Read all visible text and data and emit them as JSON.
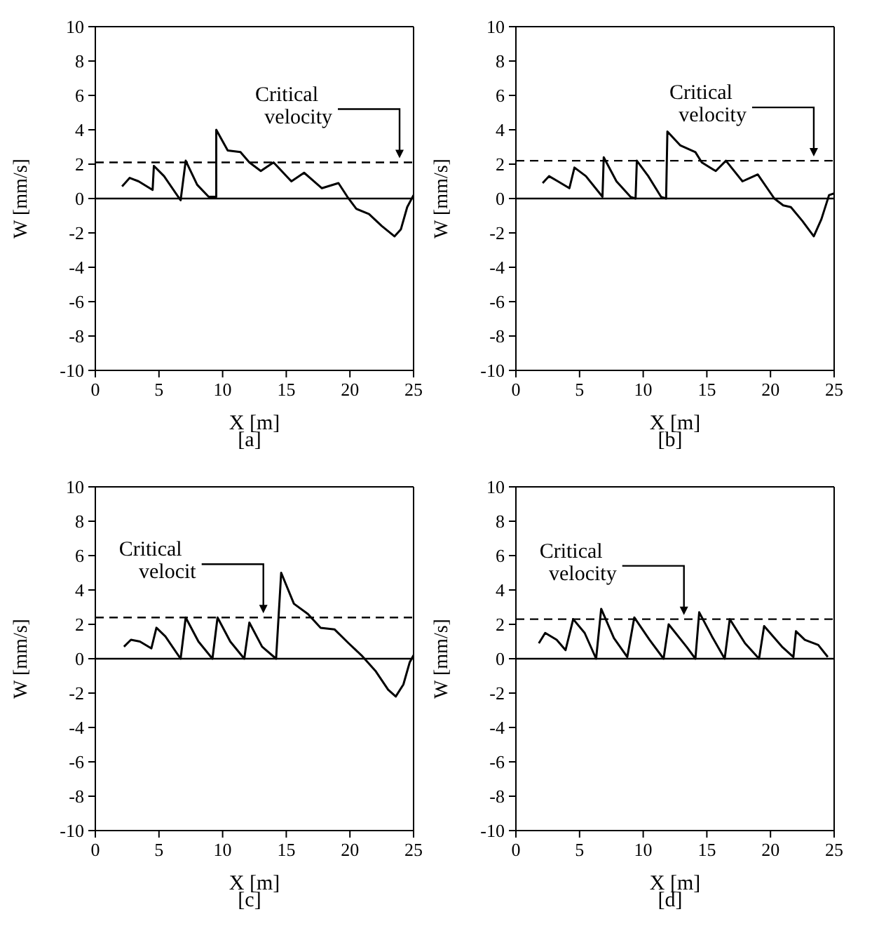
{
  "chart_data": [
    {
      "type": "line",
      "title": "[a]",
      "xlabel": "X     [m]",
      "ylabel": "W     [mm/s]",
      "xlim": [
        0,
        25
      ],
      "xticks": [
        0,
        5,
        10,
        15,
        20,
        25
      ],
      "ylim": [
        -10,
        10
      ],
      "yticks": [
        -10,
        -8,
        -6,
        -4,
        -2,
        0,
        2,
        4,
        6,
        8,
        10
      ],
      "marker": "none",
      "series": [
        {
          "color": "#000000",
          "line_style": "solid",
          "x": [
            2.1,
            2.7,
            3.4,
            4.5,
            4.6,
            5.4,
            6.7,
            7.1,
            8.0,
            8.9,
            9.5,
            9.5,
            10.4,
            11.4,
            12.1,
            13.0,
            14.0,
            15.4,
            16.4,
            17.8,
            19.1,
            19.8,
            20.5,
            21.5,
            22.5,
            23.5,
            24.0,
            24.5,
            25.0
          ],
          "values": [
            0.7,
            1.2,
            1.0,
            0.5,
            1.9,
            1.3,
            -0.1,
            2.2,
            0.8,
            0.1,
            0.1,
            4.0,
            2.8,
            2.7,
            2.1,
            1.6,
            2.1,
            1.0,
            1.5,
            0.6,
            0.9,
            0.1,
            -0.6,
            -0.9,
            -1.6,
            -2.2,
            -1.8,
            -0.5,
            0.2
          ]
        }
      ],
      "ref_lines": [
        {
          "axis": "y",
          "value": 0,
          "line_style": "solid",
          "color": "#000000"
        },
        {
          "axis": "y",
          "value": 2.1,
          "line_style": "dashed",
          "color": "#000000"
        }
      ],
      "annotations": [
        {
          "text": "Critical velocity",
          "x": 23.9,
          "y": 2.1
        }
      ]
    },
    {
      "type": "line",
      "title": "[b]",
      "xlabel": "X     [m]",
      "ylabel": "W     [mm/s]",
      "xlim": [
        0,
        25
      ],
      "xticks": [
        0,
        5,
        10,
        15,
        20,
        25
      ],
      "ylim": [
        -10,
        10
      ],
      "yticks": [
        -10,
        -8,
        -6,
        -4,
        -2,
        0,
        2,
        4,
        6,
        8,
        10
      ],
      "marker": "none",
      "series": [
        {
          "color": "#000000",
          "line_style": "solid",
          "x": [
            2.1,
            2.6,
            3.3,
            4.2,
            4.6,
            5.5,
            6.8,
            6.9,
            7.9,
            9.0,
            9.4,
            9.5,
            10.4,
            11.4,
            11.8,
            11.9,
            12.9,
            14.1,
            14.6,
            15.7,
            16.5,
            17.8,
            19.0,
            20.3,
            21.0,
            21.6,
            22.5,
            23.4,
            24.0,
            24.6,
            25.0
          ],
          "values": [
            0.9,
            1.3,
            1.0,
            0.6,
            1.8,
            1.3,
            0.1,
            2.4,
            1.0,
            0.1,
            0,
            2.2,
            1.3,
            0.1,
            0,
            3.9,
            3.1,
            2.7,
            2.1,
            1.6,
            2.2,
            1.0,
            1.4,
            0,
            -0.4,
            -0.5,
            -1.3,
            -2.2,
            -1.2,
            0.2,
            0.3
          ]
        }
      ],
      "ref_lines": [
        {
          "axis": "y",
          "value": 0,
          "line_style": "solid",
          "color": "#000000"
        },
        {
          "axis": "y",
          "value": 2.2,
          "line_style": "dashed",
          "color": "#000000"
        }
      ],
      "annotations": [
        {
          "text": "Critical velocity",
          "x": 23.4,
          "y": 2.2
        }
      ]
    },
    {
      "type": "line",
      "title": "[c]",
      "xlabel": "X     [m]",
      "ylabel": "W     [mm/s]",
      "xlim": [
        0,
        25
      ],
      "xticks": [
        0,
        5,
        10,
        15,
        20,
        25
      ],
      "ylim": [
        -10,
        10
      ],
      "yticks": [
        -10,
        -8,
        -6,
        -4,
        -2,
        0,
        2,
        4,
        6,
        8,
        10
      ],
      "marker": "none",
      "series": [
        {
          "color": "#000000",
          "line_style": "solid",
          "x": [
            2.25,
            2.8,
            3.5,
            4.4,
            4.8,
            5.5,
            6.7,
            7.1,
            8.1,
            9.2,
            9.6,
            10.6,
            11.7,
            12.1,
            13.1,
            14.2,
            14.6,
            15.6,
            16.7,
            17.7,
            18.8,
            19.9,
            20.9,
            22.0,
            23.0,
            23.6,
            24.2,
            24.7,
            25.0
          ],
          "values": [
            0.7,
            1.1,
            1.0,
            0.6,
            1.8,
            1.3,
            0,
            2.4,
            1.0,
            0,
            2.4,
            1.0,
            0,
            2.1,
            0.7,
            0,
            5.0,
            3.2,
            2.6,
            1.8,
            1.7,
            0.9,
            0.2,
            -0.7,
            -1.8,
            -2.2,
            -1.5,
            -0.2,
            0.2
          ]
        }
      ],
      "ref_lines": [
        {
          "axis": "y",
          "value": 0,
          "line_style": "solid",
          "color": "#000000"
        },
        {
          "axis": "y",
          "value": 2.4,
          "line_style": "dashed",
          "color": "#000000"
        }
      ],
      "annotations": [
        {
          "text": "Critical velocit",
          "x": 13.2,
          "y": 2.4
        }
      ]
    },
    {
      "type": "line",
      "title": "[d]",
      "xlabel": "X     [m]",
      "ylabel": "W     [mm/s]",
      "xlim": [
        0,
        25
      ],
      "xticks": [
        0,
        5,
        10,
        15,
        20,
        25
      ],
      "ylim": [
        -10,
        10
      ],
      "yticks": [
        -10,
        -8,
        -6,
        -4,
        -2,
        0,
        2,
        4,
        6,
        8,
        10
      ],
      "marker": "none",
      "series": [
        {
          "color": "#000000",
          "line_style": "solid",
          "x": [
            1.8,
            2.3,
            3.2,
            3.9,
            4.5,
            5.4,
            6.3,
            6.7,
            7.7,
            8.75,
            9.3,
            10.5,
            11.6,
            12.0,
            13.4,
            14.1,
            14.4,
            15.4,
            16.4,
            16.8,
            18.0,
            19.1,
            19.5,
            20.9,
            21.8,
            22.0,
            22.7,
            23.75,
            24.5
          ],
          "values": [
            0.9,
            1.5,
            1.1,
            0.5,
            2.3,
            1.5,
            0,
            2.9,
            1.2,
            0.1,
            2.4,
            1.1,
            0,
            2.0,
            0.7,
            0,
            2.7,
            1.3,
            0,
            2.3,
            0.9,
            0,
            1.9,
            0.7,
            0.1,
            1.6,
            1.1,
            0.8,
            0.1
          ]
        }
      ],
      "ref_lines": [
        {
          "axis": "y",
          "value": 0,
          "line_style": "solid",
          "color": "#000000"
        },
        {
          "axis": "y",
          "value": 2.3,
          "line_style": "dashed",
          "color": "#000000"
        }
      ],
      "annotations": [
        {
          "text": "Critical velocity",
          "x": 13.2,
          "y": 2.3
        }
      ]
    }
  ]
}
